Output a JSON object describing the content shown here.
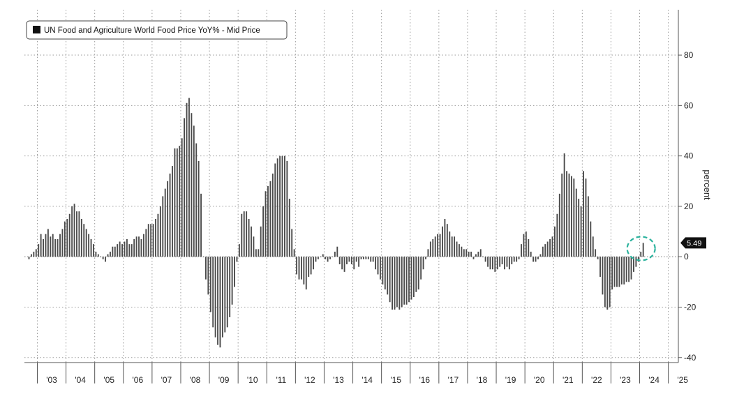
{
  "chart_data": {
    "type": "bar",
    "title": "",
    "legend": [
      {
        "label": "UN Food and Agriculture World Food Price YoY% - Mid Price",
        "color": "#111111"
      }
    ],
    "legend_position": "top-left",
    "ylabel": "percent",
    "ylim": [
      -42,
      98
    ],
    "yticks": [
      -40,
      -20,
      0,
      20,
      40,
      60,
      80
    ],
    "y_axis_side": "right",
    "grid": "dotted horizontal and vertical",
    "x_range": [
      2002.55,
      2025.35
    ],
    "x_tick_labels": [
      {
        "label": "'03",
        "year": 2003
      },
      {
        "label": "'04",
        "year": 2004
      },
      {
        "label": "'05",
        "year": 2005
      },
      {
        "label": "'06",
        "year": 2006
      },
      {
        "label": "'07",
        "year": 2007
      },
      {
        "label": "'08",
        "year": 2008
      },
      {
        "label": "'09",
        "year": 2009
      },
      {
        "label": "'10",
        "year": 2010
      },
      {
        "label": "'11",
        "year": 2011
      },
      {
        "label": "'12",
        "year": 2012
      },
      {
        "label": "'13",
        "year": 2013
      },
      {
        "label": "'14",
        "year": 2014
      },
      {
        "label": "'15",
        "year": 2015
      },
      {
        "label": "'16",
        "year": 2016
      },
      {
        "label": "'17",
        "year": 2017
      },
      {
        "label": "'18",
        "year": 2018
      },
      {
        "label": "'19",
        "year": 2019
      },
      {
        "label": "'20",
        "year": 2020
      },
      {
        "label": "'21",
        "year": 2021
      },
      {
        "label": "'22",
        "year": 2022
      },
      {
        "label": "'23",
        "year": 2023
      },
      {
        "label": "'24",
        "year": 2024
      },
      {
        "label": "'25",
        "year": 2025
      }
    ],
    "series": [
      {
        "name": "UN Food and Agriculture World Food Price YoY% - Mid Price",
        "color": "#4a4a4a",
        "start_year": 2002,
        "start_month": 9,
        "frequency": "monthly",
        "values": [
          -1,
          1,
          2,
          3,
          5,
          9,
          7,
          9,
          11,
          8,
          9,
          7,
          7,
          9,
          11,
          14,
          15,
          17,
          20,
          21,
          18,
          18,
          15,
          13,
          11,
          9,
          7,
          5,
          2,
          1,
          0,
          -1,
          -2,
          1,
          2,
          4,
          4,
          5,
          6,
          5,
          6,
          7,
          5,
          5,
          7,
          8,
          8,
          7,
          9,
          11,
          13,
          13,
          13,
          15,
          17,
          20,
          24,
          27,
          30,
          33,
          36,
          43,
          43,
          44,
          47,
          55,
          61,
          63,
          57,
          52,
          45,
          38,
          25,
          0,
          -9,
          -15,
          -22,
          -28,
          -32,
          -35,
          -36,
          -32,
          -30,
          -28,
          -24,
          -19,
          -12,
          -2,
          5,
          17,
          18,
          18,
          15,
          12,
          8,
          3,
          3,
          12,
          20,
          26,
          28,
          30,
          33,
          37,
          39,
          40,
          40,
          40,
          38,
          23,
          11,
          3,
          -7,
          -9,
          -9,
          -11,
          -13,
          -8,
          -7,
          -5,
          -2,
          -1,
          0,
          1,
          -1,
          -2,
          -1,
          0,
          2,
          4,
          -3,
          -5,
          -6,
          -3,
          -2,
          -3,
          -5,
          -2,
          -4,
          -1,
          -1,
          -1,
          -1,
          -2,
          -2,
          -5,
          -7,
          -9,
          -11,
          -13,
          -15,
          -18,
          -21,
          -21,
          -20,
          -21,
          -20,
          -19,
          -19,
          -18,
          -17,
          -16,
          -14,
          -13,
          -9,
          -5,
          -1,
          3,
          6,
          7,
          8,
          9,
          9,
          12,
          15,
          13,
          10,
          8,
          8,
          6,
          5,
          4,
          3,
          3,
          2,
          2,
          -1,
          1,
          2,
          3,
          0,
          -2,
          -4,
          -5,
          -5,
          -6,
          -5,
          -4,
          -3,
          -5,
          -4,
          -5,
          -3,
          -2,
          -2,
          -1,
          5,
          9,
          10,
          7,
          2,
          -2,
          -2,
          -1,
          1,
          4,
          5,
          6,
          7,
          8,
          12,
          17,
          25,
          33,
          41,
          34,
          33,
          32,
          31,
          27,
          23,
          20,
          34,
          31,
          24,
          14,
          8,
          3,
          -1,
          -8,
          -15,
          -20,
          -21,
          -20,
          -13,
          -12,
          -12,
          -12,
          -11,
          -11,
          -10,
          -10,
          -9,
          -6,
          -4,
          -2,
          2,
          5.49
        ]
      }
    ],
    "last_value_label": "5.49",
    "last_value_badge_color": "#111111",
    "highlight_circle_color": "#2db39e"
  }
}
